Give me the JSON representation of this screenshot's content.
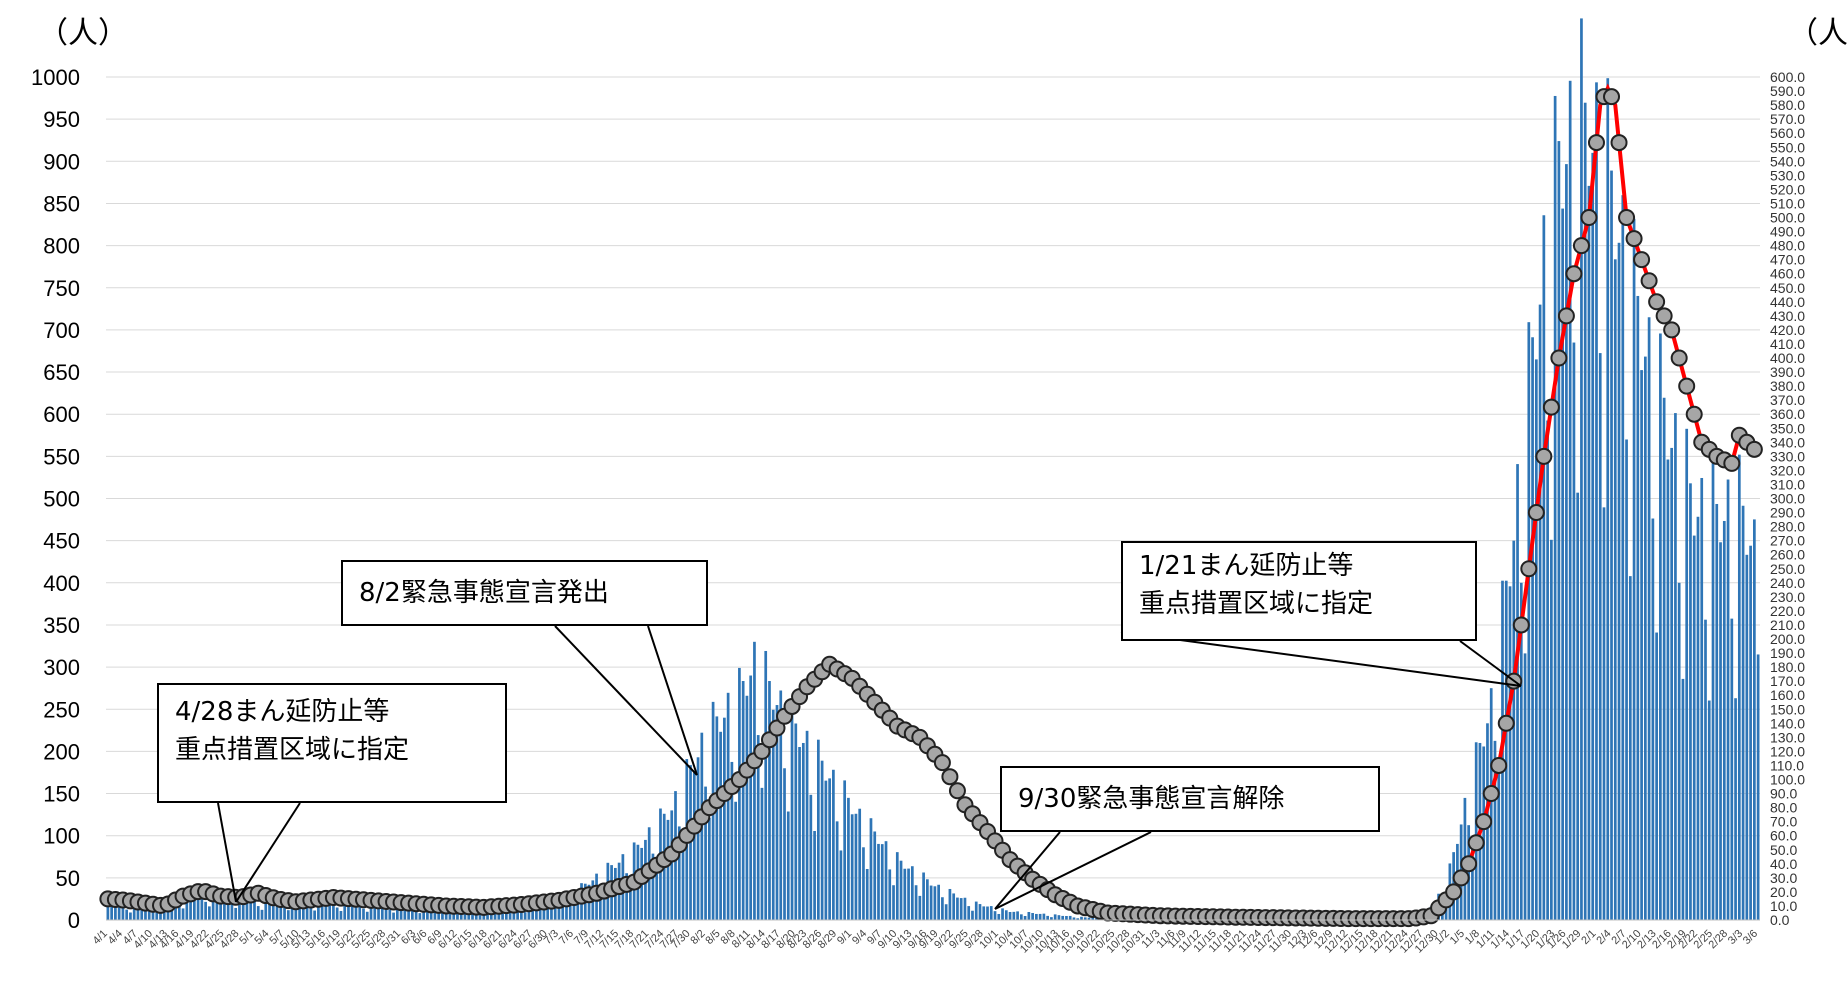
{
  "left_unit": "（人）",
  "right_unit": "（人）",
  "callouts": {
    "c1_line1": "4/28まん延防止等",
    "c1_line2": "重点措置区域に指定",
    "c2": "8/2緊急事態宣言発出",
    "c3": "9/30緊急事態宣言解除",
    "c4_line1": "1/21まん延防止等",
    "c4_line2": "重点措置区域に指定"
  },
  "chart_data": {
    "type": "bar",
    "x_start": "4/1",
    "x_end": "3/6",
    "x_tick_labels": [
      "4/1",
      "4/4",
      "4/7",
      "4/10",
      "4/13",
      "4/16",
      "4/19",
      "4/22",
      "4/25",
      "4/28",
      "5/1",
      "5/4",
      "5/7",
      "5/10",
      "5/13",
      "5/16",
      "5/19",
      "5/22",
      "5/25",
      "5/28",
      "5/31",
      "6/3",
      "6/6",
      "6/9",
      "6/12",
      "6/15",
      "6/18",
      "6/21",
      "6/24",
      "6/27",
      "6/30",
      "7/3",
      "7/6",
      "7/9",
      "7/12",
      "7/15",
      "7/18",
      "7/21",
      "7/24",
      "7/27",
      "7/30",
      "8/2",
      "8/5",
      "8/8",
      "8/11",
      "8/14",
      "8/17",
      "8/20",
      "8/23",
      "8/26",
      "8/29",
      "9/1",
      "9/4",
      "9/7",
      "9/10",
      "9/13",
      "9/16",
      "9/19",
      "9/22",
      "9/25",
      "9/28",
      "10/1",
      "10/4",
      "10/7",
      "10/10",
      "10/13",
      "10/16",
      "10/19",
      "10/22",
      "10/25",
      "10/28",
      "10/31",
      "11/3",
      "11/6",
      "11/9",
      "11/12",
      "11/15",
      "11/18",
      "11/21",
      "11/24",
      "11/27",
      "11/30",
      "12/3",
      "12/6",
      "12/9",
      "12/12",
      "12/15",
      "12/18",
      "12/21",
      "12/24",
      "12/27",
      "12/30",
      "1/2",
      "1/5",
      "1/8",
      "1/11",
      "1/14",
      "1/17",
      "1/20",
      "1/23",
      "1/26",
      "1/29",
      "2/1",
      "2/4",
      "2/7",
      "2/10",
      "2/13",
      "2/16",
      "2/19",
      "2/22",
      "2/25",
      "2/28",
      "3/3",
      "3/6"
    ],
    "left_axis": {
      "min": 0,
      "max": 1000,
      "step": 50,
      "ticks": [
        "0",
        "50",
        "100",
        "150",
        "200",
        "250",
        "300",
        "350",
        "400",
        "450",
        "500",
        "550",
        "600",
        "650",
        "700",
        "750",
        "800",
        "850",
        "900",
        "950",
        "1000"
      ]
    },
    "right_axis": {
      "min": 0,
      "max": 600,
      "step": 10,
      "decimals": 1
    },
    "series": [
      {
        "kind": "bar",
        "axis": "left",
        "color": "#2e75b6",
        "control_points": [
          [
            0,
            18
          ],
          [
            10,
            15
          ],
          [
            20,
            25
          ],
          [
            28,
            30
          ],
          [
            40,
            22
          ],
          [
            60,
            20
          ],
          [
            80,
            15
          ],
          [
            100,
            14
          ],
          [
            115,
            18
          ],
          [
            125,
            35
          ],
          [
            140,
            80
          ],
          [
            150,
            130
          ],
          [
            160,
            220
          ],
          [
            168,
            260
          ],
          [
            172,
            300
          ],
          [
            180,
            240
          ],
          [
            190,
            180
          ],
          [
            200,
            120
          ],
          [
            210,
            70
          ],
          [
            220,
            40
          ],
          [
            230,
            20
          ],
          [
            240,
            10
          ],
          [
            260,
            3
          ],
          [
            300,
            2
          ],
          [
            340,
            2
          ],
          [
            350,
            5
          ],
          [
            356,
            40
          ],
          [
            362,
            150
          ],
          [
            368,
            250
          ],
          [
            374,
            450
          ],
          [
            380,
            700
          ],
          [
            386,
            880
          ],
          [
            392,
            930
          ],
          [
            398,
            890
          ],
          [
            404,
            760
          ],
          [
            410,
            650
          ],
          [
            416,
            560
          ],
          [
            422,
            480
          ],
          [
            428,
            470
          ],
          [
            434,
            480
          ],
          [
            439,
            420
          ]
        ]
      },
      {
        "kind": "line",
        "axis": "right",
        "color": "#808080",
        "control_points": [
          [
            0,
            15
          ],
          [
            5,
            14
          ],
          [
            10,
            12
          ],
          [
            15,
            10
          ],
          [
            20,
            17
          ],
          [
            25,
            21
          ],
          [
            30,
            17
          ],
          [
            35,
            16
          ],
          [
            40,
            19
          ],
          [
            45,
            15
          ],
          [
            50,
            13
          ],
          [
            60,
            16
          ],
          [
            70,
            14
          ],
          [
            80,
            12
          ],
          [
            90,
            10
          ],
          [
            100,
            9
          ],
          [
            110,
            11
          ],
          [
            120,
            14
          ],
          [
            130,
            19
          ],
          [
            140,
            27
          ],
          [
            150,
            47
          ],
          [
            160,
            80
          ],
          [
            168,
            100
          ],
          [
            174,
            120
          ],
          [
            180,
            145
          ],
          [
            186,
            166
          ],
          [
            192,
            182
          ],
          [
            198,
            172
          ],
          [
            204,
            155
          ],
          [
            210,
            138
          ],
          [
            216,
            130
          ],
          [
            222,
            112
          ],
          [
            228,
            82
          ],
          [
            234,
            63
          ],
          [
            240,
            43
          ],
          [
            246,
            29
          ],
          [
            252,
            18
          ],
          [
            258,
            10
          ],
          [
            266,
            5
          ],
          [
            280,
            3
          ],
          [
            300,
            2
          ],
          [
            330,
            1
          ],
          [
            347,
            1
          ],
          [
            352,
            3
          ],
          [
            358,
            20
          ],
          [
            362,
            40
          ],
          [
            366,
            70
          ],
          [
            370,
            110
          ],
          [
            374,
            170
          ],
          [
            378,
            250
          ],
          [
            382,
            330
          ],
          [
            386,
            400
          ],
          [
            390,
            460
          ],
          [
            394,
            500
          ],
          [
            397,
            580
          ],
          [
            399,
            592
          ],
          [
            401,
            580
          ],
          [
            404,
            500
          ],
          [
            408,
            470
          ],
          [
            412,
            440
          ],
          [
            416,
            420
          ],
          [
            420,
            380
          ],
          [
            424,
            340
          ],
          [
            428,
            330
          ],
          [
            432,
            325
          ],
          [
            434,
            345
          ],
          [
            436,
            340
          ],
          [
            438,
            335
          ]
        ]
      }
    ]
  }
}
